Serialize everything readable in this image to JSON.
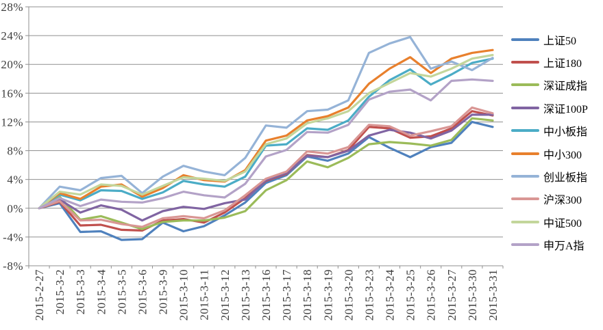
{
  "chart_data": {
    "type": "line",
    "title": "",
    "xlabel": "",
    "ylabel": "",
    "grid": true,
    "legend_position": "right",
    "ylim": [
      -8,
      28
    ],
    "ytick_step": 4,
    "y_tick_labels": [
      "28%",
      "24%",
      "20%",
      "16%",
      "12%",
      "8%",
      "4%",
      "0%",
      "-4%",
      "-8%"
    ],
    "x": [
      "2015-2-27",
      "2015-3-2",
      "2015-3-3",
      "2015-3-4",
      "2015-3-5",
      "2015-3-6",
      "2015-3-9",
      "2015-3-10",
      "2015-3-11",
      "2015-3-12",
      "2015-3-13",
      "2015-3-16",
      "2015-3-17",
      "2015-3-18",
      "2015-3-19",
      "2015-3-20",
      "2015-3-23",
      "2015-3-24",
      "2015-3-25",
      "2015-3-26",
      "2015-3-27",
      "2015-3-30",
      "2015-3-31"
    ],
    "series": [
      {
        "id": "sse50",
        "name": "上证50",
        "color": "#4F81BD",
        "values": [
          0,
          0.7,
          -3.3,
          -3.2,
          -4.4,
          -4.3,
          -2.0,
          -3.2,
          -2.5,
          -1.0,
          0.8,
          3.5,
          4.6,
          7.2,
          6.6,
          7.6,
          9.9,
          8.4,
          7.1,
          8.5,
          9.1,
          12.0,
          11.3
        ]
      },
      {
        "id": "sse180",
        "name": "上证180",
        "color": "#C0504D",
        "values": [
          0,
          0.9,
          -2.4,
          -2.3,
          -3.0,
          -3.1,
          -1.7,
          -1.5,
          -2.0,
          -0.6,
          1.4,
          3.8,
          4.8,
          7.4,
          7.1,
          8.1,
          11.3,
          11.1,
          9.8,
          10.0,
          11.1,
          13.5,
          12.9
        ]
      },
      {
        "id": "szcomp",
        "name": "深证成指",
        "color": "#9BBB59",
        "values": [
          0,
          1.6,
          -1.6,
          -1.1,
          -2.0,
          -2.9,
          -1.9,
          -1.7,
          -1.7,
          -1.3,
          -0.4,
          2.5,
          3.9,
          6.5,
          5.7,
          7.0,
          8.9,
          9.2,
          9.0,
          8.7,
          9.5,
          12.5,
          12.2
        ]
      },
      {
        "id": "sz100p",
        "name": "深证100P",
        "color": "#8064A2",
        "values": [
          0,
          1.2,
          -0.6,
          0.4,
          -0.2,
          -1.7,
          -0.4,
          0.2,
          -0.1,
          0.7,
          1.2,
          3.9,
          4.9,
          7.3,
          7.1,
          8.0,
          10.1,
          10.9,
          10.5,
          9.7,
          10.8,
          13.0,
          13.0
        ]
      },
      {
        "id": "sme",
        "name": "中小板指",
        "color": "#4BACC6",
        "values": [
          0,
          1.9,
          1.1,
          2.5,
          2.4,
          1.3,
          2.2,
          3.8,
          3.3,
          3.0,
          4.4,
          8.7,
          8.9,
          11.1,
          10.9,
          12.2,
          15.5,
          17.8,
          19.3,
          17.2,
          18.6,
          20.2,
          20.8
        ]
      },
      {
        "id": "sme300",
        "name": "中小300",
        "color": "#E8802D",
        "values": [
          0,
          2.1,
          1.3,
          3.0,
          3.3,
          1.6,
          2.8,
          4.6,
          3.9,
          3.7,
          5.3,
          9.4,
          10.1,
          12.2,
          12.8,
          14.0,
          17.3,
          19.4,
          21.0,
          18.8,
          20.8,
          21.6,
          22.0
        ]
      },
      {
        "id": "chinext",
        "name": "创业板指",
        "color": "#95B3D7",
        "values": [
          0,
          3.0,
          2.5,
          4.2,
          4.5,
          2.1,
          4.4,
          5.9,
          5.1,
          4.6,
          7.0,
          11.5,
          11.2,
          13.5,
          13.7,
          15.0,
          21.6,
          22.9,
          23.8,
          19.4,
          20.4,
          19.2,
          20.9
        ]
      },
      {
        "id": "hs300",
        "name": "沪深300",
        "color": "#D99694",
        "values": [
          0,
          1.0,
          -1.7,
          -1.6,
          -2.2,
          -2.6,
          -1.4,
          -1.1,
          -1.4,
          -0.3,
          1.8,
          4.1,
          5.1,
          7.9,
          7.6,
          8.5,
          11.6,
          11.4,
          10.1,
          10.7,
          11.4,
          14.0,
          13.2
        ]
      },
      {
        "id": "csi500",
        "name": "中证500",
        "color": "#C3D69B",
        "values": [
          0,
          2.3,
          1.9,
          3.3,
          3.1,
          1.9,
          3.1,
          4.3,
          4.1,
          3.8,
          5.1,
          8.9,
          9.7,
          11.8,
          12.5,
          13.5,
          16.0,
          17.4,
          18.8,
          18.3,
          19.4,
          20.8,
          21.3
        ]
      },
      {
        "id": "swa",
        "name": "申万A指",
        "color": "#B3A2C7",
        "values": [
          0,
          1.4,
          0.3,
          1.2,
          0.9,
          0.8,
          1.4,
          2.3,
          1.8,
          1.5,
          3.4,
          7.2,
          8.1,
          10.6,
          10.5,
          11.6,
          15.1,
          16.2,
          16.5,
          15.0,
          17.7,
          17.9,
          17.7
        ]
      }
    ],
    "colors": {
      "gridline": "#8f8f8f",
      "axis": "#8f8f8f",
      "tick_text": "#3d3d3d",
      "background": "#ffffff"
    }
  }
}
